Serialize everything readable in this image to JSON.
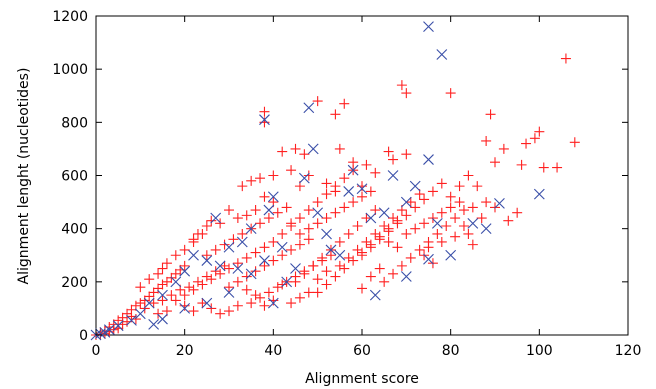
{
  "chart_data": {
    "type": "scatter",
    "xlabel": "Alignment score",
    "ylabel": "Alignment lenght (nucleotides)",
    "xlim": [
      0,
      120
    ],
    "ylim": [
      0,
      1200
    ],
    "xticks": [
      "0",
      "20",
      "40",
      "60",
      "80",
      "100",
      "120"
    ],
    "yticks": [
      "0",
      "200",
      "400",
      "600",
      "800",
      "1000",
      "1200"
    ],
    "grid": false,
    "legend": "none",
    "series": [
      {
        "marker": "plus",
        "color": "#ff2020",
        "points": [
          [
            1,
            8
          ],
          [
            2,
            15
          ],
          [
            3,
            30
          ],
          [
            4,
            40
          ],
          [
            5,
            55
          ],
          [
            6,
            65
          ],
          [
            7,
            80
          ],
          [
            8,
            95
          ],
          [
            9,
            110
          ],
          [
            10,
            120
          ],
          [
            11,
            130
          ],
          [
            12,
            145
          ],
          [
            13,
            160
          ],
          [
            14,
            175
          ],
          [
            15,
            190
          ],
          [
            16,
            200
          ],
          [
            17,
            215
          ],
          [
            18,
            230
          ],
          [
            19,
            245
          ],
          [
            20,
            260
          ],
          [
            10,
            180
          ],
          [
            12,
            210
          ],
          [
            14,
            230
          ],
          [
            15,
            250
          ],
          [
            16,
            270
          ],
          [
            18,
            300
          ],
          [
            20,
            320
          ],
          [
            22,
            350
          ],
          [
            23,
            380
          ],
          [
            25,
            410
          ],
          [
            11,
            100
          ],
          [
            13,
            120
          ],
          [
            15,
            130
          ],
          [
            17,
            150
          ],
          [
            19,
            170
          ],
          [
            21,
            180
          ],
          [
            23,
            200
          ],
          [
            25,
            220
          ],
          [
            27,
            240
          ],
          [
            29,
            260
          ],
          [
            20,
            150
          ],
          [
            22,
            170
          ],
          [
            24,
            190
          ],
          [
            26,
            210
          ],
          [
            28,
            230
          ],
          [
            30,
            250
          ],
          [
            32,
            270
          ],
          [
            34,
            290
          ],
          [
            36,
            310
          ],
          [
            38,
            330
          ],
          [
            25,
            300
          ],
          [
            27,
            320
          ],
          [
            29,
            340
          ],
          [
            31,
            360
          ],
          [
            33,
            380
          ],
          [
            35,
            400
          ],
          [
            37,
            420
          ],
          [
            39,
            440
          ],
          [
            41,
            460
          ],
          [
            43,
            480
          ],
          [
            30,
            180
          ],
          [
            32,
            200
          ],
          [
            34,
            220
          ],
          [
            36,
            240
          ],
          [
            38,
            260
          ],
          [
            40,
            280
          ],
          [
            42,
            300
          ],
          [
            44,
            320
          ],
          [
            46,
            340
          ],
          [
            48,
            360
          ],
          [
            35,
            120
          ],
          [
            37,
            140
          ],
          [
            39,
            160
          ],
          [
            41,
            180
          ],
          [
            43,
            200
          ],
          [
            45,
            220
          ],
          [
            47,
            240
          ],
          [
            49,
            260
          ],
          [
            51,
            280
          ],
          [
            53,
            300
          ],
          [
            40,
            350
          ],
          [
            42,
            380
          ],
          [
            44,
            410
          ],
          [
            46,
            440
          ],
          [
            48,
            470
          ],
          [
            50,
            500
          ],
          [
            52,
            530
          ],
          [
            54,
            560
          ],
          [
            56,
            590
          ],
          [
            58,
            620
          ],
          [
            45,
            200
          ],
          [
            47,
            230
          ],
          [
            49,
            260
          ],
          [
            51,
            290
          ],
          [
            53,
            320
          ],
          [
            55,
            350
          ],
          [
            57,
            380
          ],
          [
            59,
            410
          ],
          [
            61,
            440
          ],
          [
            63,
            470
          ],
          [
            50,
            160
          ],
          [
            52,
            190
          ],
          [
            54,
            220
          ],
          [
            56,
            250
          ],
          [
            58,
            280
          ],
          [
            60,
            310
          ],
          [
            62,
            340
          ],
          [
            64,
            370
          ],
          [
            66,
            400
          ],
          [
            68,
            430
          ],
          [
            55,
            260
          ],
          [
            57,
            290
          ],
          [
            59,
            320
          ],
          [
            61,
            350
          ],
          [
            63,
            380
          ],
          [
            65,
            410
          ],
          [
            67,
            440
          ],
          [
            69,
            470
          ],
          [
            71,
            500
          ],
          [
            73,
            530
          ],
          [
            60,
            300
          ],
          [
            62,
            330
          ],
          [
            64,
            360
          ],
          [
            66,
            390
          ],
          [
            68,
            420
          ],
          [
            70,
            450
          ],
          [
            72,
            480
          ],
          [
            74,
            510
          ],
          [
            76,
            540
          ],
          [
            78,
            570
          ],
          [
            65,
            200
          ],
          [
            67,
            230
          ],
          [
            69,
            260
          ],
          [
            71,
            290
          ],
          [
            73,
            320
          ],
          [
            75,
            350
          ],
          [
            77,
            380
          ],
          [
            79,
            410
          ],
          [
            81,
            440
          ],
          [
            83,
            470
          ],
          [
            38,
            840
          ],
          [
            38,
            800
          ],
          [
            50,
            880
          ],
          [
            56,
            870
          ],
          [
            54,
            830
          ],
          [
            69,
            940
          ],
          [
            70,
            910
          ],
          [
            80,
            910
          ],
          [
            89,
            830
          ],
          [
            88,
            730
          ],
          [
            106,
            1040
          ],
          [
            108,
            725
          ],
          [
            100,
            765
          ],
          [
            99,
            740
          ],
          [
            96,
            640
          ],
          [
            97,
            720
          ],
          [
            101,
            630
          ],
          [
            104,
            630
          ],
          [
            90,
            650
          ],
          [
            92,
            700
          ],
          [
            42,
            690
          ],
          [
            45,
            700
          ],
          [
            47,
            680
          ],
          [
            55,
            700
          ],
          [
            58,
            650
          ],
          [
            61,
            640
          ],
          [
            63,
            610
          ],
          [
            66,
            690
          ],
          [
            67,
            660
          ],
          [
            70,
            680
          ],
          [
            33,
            560
          ],
          [
            35,
            580
          ],
          [
            37,
            590
          ],
          [
            40,
            600
          ],
          [
            44,
            620
          ],
          [
            46,
            560
          ],
          [
            48,
            600
          ],
          [
            52,
            570
          ],
          [
            54,
            540
          ],
          [
            60,
            560
          ],
          [
            86,
            560
          ],
          [
            88,
            500
          ],
          [
            90,
            480
          ],
          [
            93,
            430
          ],
          [
            95,
            460
          ],
          [
            80,
            520
          ],
          [
            82,
            560
          ],
          [
            84,
            600
          ],
          [
            85,
            480
          ],
          [
            87,
            440
          ],
          [
            75,
            330
          ],
          [
            76,
            270
          ],
          [
            74,
            300
          ],
          [
            78,
            350
          ],
          [
            81,
            370
          ],
          [
            83,
            410
          ],
          [
            85,
            340
          ],
          [
            60,
            175
          ],
          [
            62,
            220
          ],
          [
            64,
            250
          ],
          [
            30,
            90
          ],
          [
            32,
            110
          ],
          [
            28,
            80
          ],
          [
            26,
            100
          ],
          [
            24,
            120
          ],
          [
            22,
            90
          ],
          [
            20,
            110
          ],
          [
            18,
            130
          ],
          [
            16,
            90
          ],
          [
            14,
            80
          ],
          [
            5,
            25
          ],
          [
            6,
            40
          ],
          [
            7,
            50
          ],
          [
            8,
            70
          ],
          [
            9,
            60
          ],
          [
            4,
            20
          ],
          [
            3,
            12
          ],
          [
            2,
            5
          ],
          [
            1,
            2
          ],
          [
            0,
            0
          ],
          [
            34,
            450
          ],
          [
            36,
            470
          ],
          [
            28,
            420
          ],
          [
            26,
            430
          ],
          [
            24,
            380
          ],
          [
            22,
            360
          ],
          [
            30,
            470
          ],
          [
            32,
            440
          ],
          [
            38,
            520
          ],
          [
            40,
            500
          ],
          [
            44,
            420
          ],
          [
            46,
            380
          ],
          [
            48,
            400
          ],
          [
            50,
            420
          ],
          [
            52,
            440
          ],
          [
            54,
            460
          ],
          [
            56,
            480
          ],
          [
            58,
            500
          ],
          [
            60,
            520
          ],
          [
            62,
            540
          ],
          [
            44,
            120
          ],
          [
            46,
            140
          ],
          [
            48,
            160
          ],
          [
            40,
            130
          ],
          [
            38,
            110
          ],
          [
            36,
            150
          ],
          [
            34,
            170
          ],
          [
            42,
            190
          ],
          [
            50,
            210
          ],
          [
            52,
            240
          ],
          [
            66,
            350
          ],
          [
            68,
            330
          ],
          [
            70,
            380
          ],
          [
            72,
            400
          ],
          [
            74,
            420
          ],
          [
            76,
            440
          ],
          [
            78,
            460
          ],
          [
            80,
            480
          ],
          [
            82,
            500
          ],
          [
            84,
            380
          ]
        ]
      },
      {
        "marker": "cross",
        "color": "#3a4fa8",
        "points": [
          [
            0,
            0
          ],
          [
            1,
            5
          ],
          [
            2,
            10
          ],
          [
            3,
            20
          ],
          [
            5,
            35
          ],
          [
            8,
            55
          ],
          [
            10,
            80
          ],
          [
            12,
            120
          ],
          [
            15,
            150
          ],
          [
            18,
            200
          ],
          [
            20,
            240
          ],
          [
            22,
            300
          ],
          [
            25,
            280
          ],
          [
            27,
            440
          ],
          [
            30,
            330
          ],
          [
            32,
            250
          ],
          [
            35,
            400
          ],
          [
            38,
            280
          ],
          [
            39,
            470
          ],
          [
            40,
            520
          ],
          [
            38,
            810
          ],
          [
            48,
            855
          ],
          [
            49,
            700
          ],
          [
            47,
            590
          ],
          [
            50,
            460
          ],
          [
            52,
            380
          ],
          [
            55,
            300
          ],
          [
            57,
            540
          ],
          [
            58,
            620
          ],
          [
            60,
            550
          ],
          [
            62,
            440
          ],
          [
            65,
            460
          ],
          [
            67,
            600
          ],
          [
            70,
            500
          ],
          [
            72,
            560
          ],
          [
            75,
            660
          ],
          [
            77,
            420
          ],
          [
            80,
            300
          ],
          [
            85,
            420
          ],
          [
            88,
            400
          ],
          [
            91,
            495
          ],
          [
            100,
            530
          ],
          [
            75,
            1160
          ],
          [
            78,
            1055
          ],
          [
            75,
            285
          ],
          [
            70,
            220
          ],
          [
            63,
            150
          ],
          [
            45,
            250
          ],
          [
            43,
            200
          ],
          [
            30,
            160
          ],
          [
            25,
            120
          ],
          [
            20,
            100
          ],
          [
            15,
            60
          ],
          [
            13,
            40
          ],
          [
            35,
            230
          ],
          [
            40,
            120
          ],
          [
            28,
            260
          ],
          [
            33,
            350
          ],
          [
            42,
            330
          ],
          [
            53,
            320
          ]
        ]
      }
    ]
  }
}
